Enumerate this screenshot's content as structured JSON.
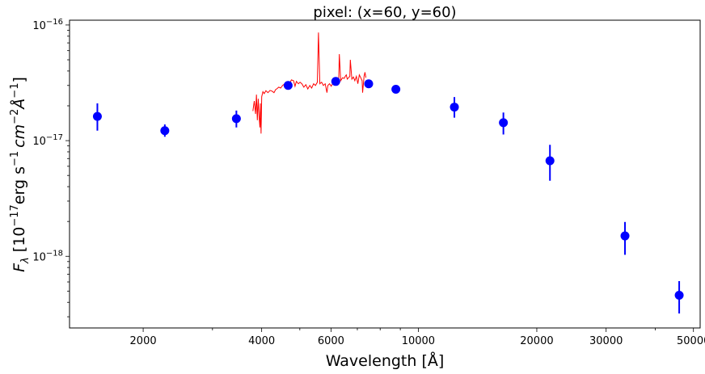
{
  "chart_data": {
    "type": "scatter",
    "title": "pixel: (x=60, y=60)",
    "xlabel": "Wavelength [Å]",
    "ylabel": {
      "prefix": "F",
      "prefix_sub": "λ",
      "open": " [10",
      "exp_main": "−17",
      "unit_erg": "erg s",
      "exp_s": "−1",
      "unit_cm": "cm",
      "exp_cm": "−2",
      "unit_A": "Å",
      "exp_A": "−1",
      "close": "]"
    },
    "x_scale": "log",
    "y_scale": "log",
    "xlim": [
      1300,
      52000
    ],
    "ylim": [
      2.4e-19,
      1.1e-16
    ],
    "grid": false,
    "xtick_labels": [
      {
        "value": 2000,
        "label": "2000"
      },
      {
        "value": 4000,
        "label": "4000"
      },
      {
        "value": 6000,
        "label": "6000"
      },
      {
        "value": 10000,
        "label": "10000"
      },
      {
        "value": 20000,
        "label": "20000"
      },
      {
        "value": 30000,
        "label": "30000"
      },
      {
        "value": 50000,
        "label": "50000"
      }
    ],
    "ytick_labels": [
      {
        "value": 1e-16,
        "base": "10",
        "exp": "−16"
      },
      {
        "value": 1e-17,
        "base": "10",
        "exp": "−17"
      },
      {
        "value": 1e-18,
        "base": "10",
        "exp": "−18"
      }
    ],
    "series": [
      {
        "kind": "errorbar",
        "color": "#0000ff",
        "points": [
          {
            "x": 1530,
            "y": 1.62e-17,
            "ylo": 1.22e-17,
            "yhi": 2.1e-17
          },
          {
            "x": 2270,
            "y": 1.22e-17,
            "ylo": 1.08e-17,
            "yhi": 1.38e-17
          },
          {
            "x": 3450,
            "y": 1.55e-17,
            "ylo": 1.3e-17,
            "yhi": 1.82e-17
          },
          {
            "x": 4670,
            "y": 3e-17,
            "ylo": 2.88e-17,
            "yhi": 3.13e-17
          },
          {
            "x": 6170,
            "y": 3.25e-17,
            "ylo": 3.12e-17,
            "yhi": 3.38e-17
          },
          {
            "x": 7480,
            "y": 3.1e-17,
            "ylo": 2.98e-17,
            "yhi": 3.22e-17
          },
          {
            "x": 8770,
            "y": 2.78e-17,
            "ylo": 2.68e-17,
            "yhi": 2.88e-17
          },
          {
            "x": 12350,
            "y": 1.95e-17,
            "ylo": 1.58e-17,
            "yhi": 2.38e-17
          },
          {
            "x": 16450,
            "y": 1.43e-17,
            "ylo": 1.13e-17,
            "yhi": 1.75e-17
          },
          {
            "x": 21600,
            "y": 6.7e-18,
            "ylo": 4.5e-18,
            "yhi": 9.2e-18
          },
          {
            "x": 33500,
            "y": 1.5e-18,
            "ylo": 1.03e-18,
            "yhi": 1.98e-18
          },
          {
            "x": 46000,
            "y": 4.6e-19,
            "ylo": 3.2e-19,
            "yhi": 6.1e-19
          }
        ]
      },
      {
        "kind": "spectrum",
        "color": "#ff0000",
        "x": [
          3800,
          3830,
          3860,
          3880,
          3900,
          3920,
          3940,
          3960,
          3970,
          3985,
          4000,
          4030,
          4060,
          4100,
          4150,
          4200,
          4250,
          4300,
          4340,
          4380,
          4420,
          4470,
          4520,
          4580,
          4650,
          4700,
          4760,
          4820,
          4861,
          4900,
          4959,
          5007,
          5060,
          5120,
          5180,
          5240,
          5300,
          5360,
          5420,
          5480,
          5540,
          5577,
          5620,
          5680,
          5740,
          5800,
          5860,
          5890,
          5950,
          6010,
          6080,
          6150,
          6220,
          6280,
          6300,
          6350,
          6420,
          6480,
          6520,
          6563,
          6600,
          6650,
          6700,
          6720,
          6780,
          6840,
          6900,
          6960,
          7020,
          7080,
          7140,
          7200,
          7220,
          7280,
          7320,
          7360
        ],
        "y": [
          1.8e-17,
          2.2e-17,
          1.7e-17,
          2.5e-17,
          1.5e-17,
          2.3e-17,
          1.6e-17,
          1.3e-17,
          2.1e-17,
          1.15e-17,
          2.4e-17,
          2.65e-17,
          2.55e-17,
          2.7e-17,
          2.6e-17,
          2.72e-17,
          2.68e-17,
          2.6e-17,
          2.76e-17,
          2.82e-17,
          2.9e-17,
          2.85e-17,
          3e-17,
          3.1e-17,
          3.2e-17,
          3.05e-17,
          3.35e-17,
          3.3e-17,
          2.95e-17,
          3.25e-17,
          3.1e-17,
          3.2e-17,
          3.1e-17,
          2.9e-17,
          3.05e-17,
          2.8e-17,
          3e-17,
          2.85e-17,
          3.1e-17,
          3e-17,
          3.2e-17,
          8.6e-17,
          3.1e-17,
          3.2e-17,
          3e-17,
          3.1e-17,
          2.6e-17,
          3e-17,
          3.1e-17,
          2.95e-17,
          3.2e-17,
          3.3e-17,
          3.4e-17,
          3.5e-17,
          5.6e-17,
          3.3e-17,
          3.5e-17,
          3.45e-17,
          3.6e-17,
          3.7e-17,
          3.4e-17,
          3.5e-17,
          3.6e-17,
          5e-17,
          3.4e-17,
          3.55e-17,
          3.3e-17,
          3.6e-17,
          3.1e-17,
          3.7e-17,
          3.5e-17,
          3.3e-17,
          2.6e-17,
          3.6e-17,
          3.9e-17,
          3.5e-17
        ]
      }
    ]
  }
}
